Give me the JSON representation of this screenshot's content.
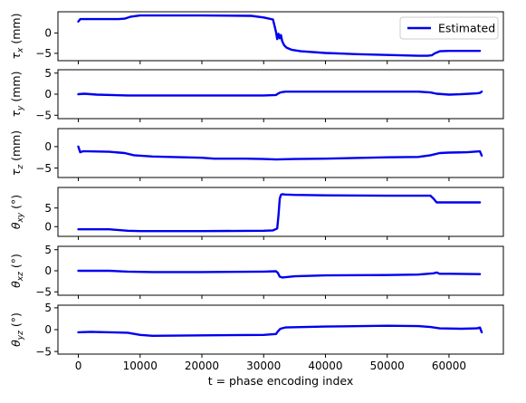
{
  "colors": {
    "line": "#0000ee",
    "axes": "#000000",
    "background": "#ffffff"
  },
  "chart_data": {
    "type": "line",
    "xlabel": "t = phase encoding index",
    "xlim": [
      -3300,
      68800
    ],
    "xticks": [
      0,
      10000,
      20000,
      30000,
      40000,
      50000,
      60000
    ],
    "xtick_labels": [
      "0",
      "10000",
      "20000",
      "30000",
      "40000",
      "50000",
      "60000"
    ],
    "legend": {
      "label": "Estimated",
      "location": "top-right",
      "panel": 0
    },
    "panels": [
      {
        "ylabel": "τx (mm)",
        "ylabel_main": "τ",
        "ylabel_sub": "x",
        "ylabel_tail": " (mm)",
        "ylim": [
          -6.8,
          5.2
        ],
        "yticks": [
          0,
          -5
        ],
        "ytick_labels": [
          "0",
          "−5"
        ],
        "x": [
          0,
          300,
          1500,
          6500,
          7500,
          8500,
          10000,
          20000,
          28000,
          30000,
          31500,
          31800,
          32000,
          32200,
          32400,
          32600,
          32800,
          33000,
          33300,
          33700,
          34500,
          36000,
          40000,
          45000,
          50000,
          55000,
          56500,
          57200,
          57700,
          58500,
          60000,
          62000,
          65000
        ],
        "y": [
          2.8,
          3.4,
          3.4,
          3.4,
          3.5,
          4.0,
          4.3,
          4.3,
          4.2,
          3.8,
          3.3,
          1.5,
          0.2,
          -1.5,
          -0.2,
          -1.3,
          -0.5,
          -2.0,
          -3.0,
          -3.6,
          -4.1,
          -4.5,
          -4.9,
          -5.2,
          -5.4,
          -5.6,
          -5.6,
          -5.5,
          -5.0,
          -4.5,
          -4.4,
          -4.4,
          -4.4
        ]
      },
      {
        "ylabel": "τy (mm)",
        "ylabel_main": "τ",
        "ylabel_sub": "y",
        "ylabel_tail": " (mm)",
        "ylim": [
          -5.8,
          5.8
        ],
        "yticks": [
          5,
          0,
          -5
        ],
        "ytick_labels": [
          "5",
          "0",
          "−5"
        ],
        "x": [
          0,
          1000,
          3000,
          8000,
          10000,
          20000,
          30000,
          32000,
          32300,
          32700,
          33500,
          40000,
          50000,
          55000,
          57000,
          58000,
          60000,
          62000,
          64500,
          65000,
          65300
        ],
        "y": [
          0.0,
          0.1,
          -0.1,
          -0.3,
          -0.3,
          -0.3,
          -0.3,
          -0.2,
          0.1,
          0.4,
          0.6,
          0.6,
          0.6,
          0.6,
          0.4,
          0.1,
          -0.1,
          0.0,
          0.2,
          0.3,
          0.6
        ]
      },
      {
        "ylabel": "τz (mm)",
        "ylabel_main": "τ",
        "ylabel_sub": "z",
        "ylabel_tail": " (mm)",
        "ylim": [
          -7.2,
          4.2
        ],
        "yticks": [
          0,
          -5
        ],
        "ytick_labels": [
          "0",
          "−5"
        ],
        "x": [
          0,
          300,
          700,
          1500,
          5000,
          7500,
          9000,
          12000,
          20000,
          22000,
          27000,
          30000,
          32000,
          35000,
          40000,
          50000,
          55000,
          57000,
          58500,
          60000,
          63000,
          65000,
          65300
        ],
        "y": [
          0.0,
          -1.3,
          -1.1,
          -1.1,
          -1.2,
          -1.5,
          -2.0,
          -2.3,
          -2.6,
          -2.8,
          -2.8,
          -2.9,
          -3.0,
          -2.9,
          -2.8,
          -2.5,
          -2.4,
          -2.0,
          -1.5,
          -1.4,
          -1.3,
          -1.1,
          -2.1
        ]
      },
      {
        "ylabel": "θxy (°)",
        "ylabel_main": "θ",
        "ylabel_sub": "xy",
        "ylabel_tail": " (°)",
        "ylim": [
          -2.6,
          10.5
        ],
        "yticks": [
          5,
          0
        ],
        "ytick_labels": [
          "5",
          "0"
        ],
        "x": [
          0,
          5000,
          8000,
          10000,
          20000,
          30000,
          31500,
          32200,
          32400,
          32600,
          32800,
          33000,
          33500,
          35000,
          40000,
          50000,
          55000,
          57000,
          57500,
          58000,
          60000,
          65000
        ],
        "y": [
          -0.7,
          -0.7,
          -1.1,
          -1.2,
          -1.2,
          -1.1,
          -1.0,
          -0.5,
          3.0,
          7.5,
          8.5,
          8.7,
          8.6,
          8.5,
          8.4,
          8.3,
          8.3,
          8.3,
          7.5,
          6.5,
          6.5,
          6.5
        ]
      },
      {
        "ylabel": "θxz (°)",
        "ylabel_main": "θ",
        "ylabel_sub": "xz",
        "ylabel_tail": " (°)",
        "ylim": [
          -5.8,
          5.8
        ],
        "yticks": [
          5,
          0,
          -5
        ],
        "ytick_labels": [
          "5",
          "0",
          "−5"
        ],
        "x": [
          0,
          5000,
          8000,
          12000,
          20000,
          30000,
          32000,
          32300,
          32600,
          33000,
          35000,
          40000,
          50000,
          55000,
          57500,
          58000,
          58500,
          60000,
          65000
        ],
        "y": [
          0.0,
          0.0,
          -0.2,
          -0.3,
          -0.3,
          -0.2,
          -0.1,
          -0.5,
          -1.4,
          -1.6,
          -1.3,
          -1.1,
          -1.0,
          -0.9,
          -0.6,
          -0.4,
          -0.7,
          -0.7,
          -0.8
        ]
      },
      {
        "ylabel": "θyz (°)",
        "ylabel_main": "θ",
        "ylabel_sub": "yz",
        "ylabel_tail": " (°)",
        "ylim": [
          -5.6,
          5.6
        ],
        "yticks": [
          5,
          0,
          -5
        ],
        "ytick_labels": [
          "5",
          "0",
          "−5"
        ],
        "x": [
          0,
          2000,
          5000,
          8000,
          10000,
          12000,
          20000,
          30000,
          32000,
          32300,
          32700,
          33500,
          40000,
          50000,
          55000,
          57000,
          58500,
          62000,
          64500,
          65000,
          65300
        ],
        "y": [
          -0.6,
          -0.5,
          -0.6,
          -0.7,
          -1.2,
          -1.4,
          -1.3,
          -1.2,
          -1.0,
          -0.4,
          0.2,
          0.5,
          0.7,
          0.9,
          0.8,
          0.6,
          0.3,
          0.2,
          0.3,
          0.5,
          -0.6
        ]
      }
    ]
  }
}
